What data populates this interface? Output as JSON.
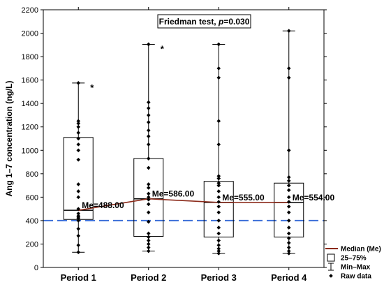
{
  "chart_data": {
    "type": "boxplot",
    "ylabel": "Ang 1–7 concentration (ng/L)",
    "ylim": [
      0,
      2200
    ],
    "yticks": [
      0,
      200,
      400,
      600,
      800,
      1000,
      1200,
      1400,
      1600,
      1800,
      2000,
      2200
    ],
    "categories": [
      "Period 1",
      "Period 2",
      "Period 3",
      "Period 4"
    ],
    "annotation": {
      "prefix": "Friedman test, ",
      "p_symbol": "p",
      "suffix": "=0.030"
    },
    "reference_line": {
      "y": 400,
      "color": "#3b6fd8"
    },
    "median_line_color": "#8b2a1a",
    "boxes": [
      {
        "min": 130,
        "q1": 410,
        "median": 488,
        "q3": 1110,
        "max": 1575,
        "median_label": "Me=488.00",
        "outlier_marker": "*",
        "raw": [
          130,
          190,
          270,
          330,
          400,
          420,
          430,
          440,
          460,
          500,
          600,
          650,
          710,
          920,
          1000,
          1050,
          1100,
          1150,
          1200,
          1230,
          1250,
          1575
        ]
      },
      {
        "min": 140,
        "q1": 265,
        "median": 586,
        "q3": 930,
        "max": 1905,
        "median_label": "Me=586.00",
        "outlier_marker": "*",
        "raw": [
          140,
          170,
          200,
          230,
          260,
          290,
          390,
          470,
          540,
          580,
          600,
          630,
          680,
          710,
          850,
          930,
          1050,
          1120,
          1170,
          1240,
          1300,
          1360,
          1410,
          1905
        ]
      },
      {
        "min": 120,
        "q1": 260,
        "median": 555,
        "q3": 735,
        "max": 1905,
        "median_label": "Me=555.00",
        "raw": [
          120,
          140,
          160,
          190,
          230,
          290,
          340,
          400,
          470,
          520,
          560,
          600,
          650,
          700,
          720,
          760,
          780,
          1050,
          1250,
          1620,
          1700,
          1905
        ]
      },
      {
        "min": 120,
        "q1": 260,
        "median": 554,
        "q3": 720,
        "max": 2020,
        "median_label": "Me=554.00",
        "raw": [
          120,
          140,
          170,
          210,
          250,
          290,
          340,
          400,
          470,
          520,
          560,
          600,
          660,
          700,
          740,
          770,
          1000,
          1620,
          1700,
          2020
        ]
      }
    ],
    "legend": [
      {
        "symbol": "line",
        "label": "Median (Me)"
      },
      {
        "symbol": "box",
        "label": "25–75%"
      },
      {
        "symbol": "whisker",
        "label": "Min–Max"
      },
      {
        "symbol": "diamond",
        "label": "Raw data"
      }
    ]
  }
}
